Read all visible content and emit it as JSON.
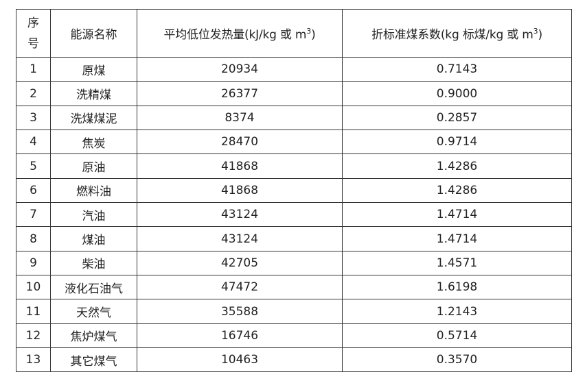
{
  "table": {
    "headers": {
      "no_line1": "序",
      "no_line2": "号",
      "name": "能源名称",
      "heat_prefix": "平均低位发热量(kJ/kg 或 m",
      "heat_sup": "3",
      "heat_suffix": ")",
      "coef_prefix": "折标准煤系数(kg 标煤/kg 或 m",
      "coef_sup": "3",
      "coef_suffix": ")"
    },
    "rows": [
      {
        "no": "1",
        "name": "原煤",
        "heat": "20934",
        "coef": "0.7143"
      },
      {
        "no": "2",
        "name": "洗精煤",
        "heat": "26377",
        "coef": "0.9000"
      },
      {
        "no": "3",
        "name": "洗煤煤泥",
        "heat": "8374",
        "coef": "0.2857"
      },
      {
        "no": "4",
        "name": "焦炭",
        "heat": "28470",
        "coef": "0.9714"
      },
      {
        "no": "5",
        "name": "原油",
        "heat": "41868",
        "coef": "1.4286"
      },
      {
        "no": "6",
        "name": "燃料油",
        "heat": "41868",
        "coef": "1.4286"
      },
      {
        "no": "7",
        "name": "汽油",
        "heat": "43124",
        "coef": "1.4714"
      },
      {
        "no": "8",
        "name": "煤油",
        "heat": "43124",
        "coef": "1.4714"
      },
      {
        "no": "9",
        "name": "柴油",
        "heat": "42705",
        "coef": "1.4571"
      },
      {
        "no": "10",
        "name": "液化石油气",
        "heat": "47472",
        "coef": "1.6198"
      },
      {
        "no": "11",
        "name": "天然气",
        "heat": "35588",
        "coef": "1.2143"
      },
      {
        "no": "12",
        "name": "焦炉煤气",
        "heat": "16746",
        "coef": "0.5714"
      },
      {
        "no": "13",
        "name": "其它煤气",
        "heat": "10463",
        "coef": "0.3570"
      }
    ]
  }
}
